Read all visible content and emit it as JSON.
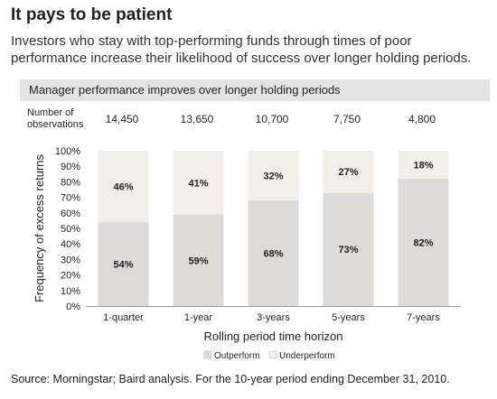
{
  "header": {
    "title": "It pays to be patient",
    "subtitle": "Investors who stay with top-performing funds through times of poor performance increase their likelihood of success over longer holding periods."
  },
  "panel": {
    "title": "Manager performance improves over longer holding periods",
    "observations_label": "Number of observations",
    "observations": [
      "14,450",
      "13,650",
      "10,700",
      "7,750",
      "4,800"
    ]
  },
  "chart_data": {
    "type": "bar",
    "stacked": true,
    "categories": [
      "1-quarter",
      "1-year",
      "3-years",
      "5-years",
      "7-years"
    ],
    "series": [
      {
        "name": "Outperform",
        "values": [
          54,
          59,
          68,
          73,
          82
        ],
        "labels": [
          "54%",
          "59%",
          "68%",
          "73%",
          "82%"
        ],
        "color": "#dcdbd9"
      },
      {
        "name": "Underperform",
        "values": [
          46,
          41,
          32,
          27,
          18
        ],
        "labels": [
          "46%",
          "41%",
          "32%",
          "27%",
          "18%"
        ],
        "color": "#f1efe8"
      }
    ],
    "xlabel": "Rolling period time horizon",
    "ylabel": "Frequency of excess returns",
    "ylim": [
      0,
      100
    ],
    "yticks": [
      "0%",
      "10%",
      "20%",
      "30%",
      "40%",
      "50%",
      "60%",
      "70%",
      "80%",
      "90%",
      "100%"
    ],
    "legend_position": "bottom",
    "grid": false
  },
  "footer": {
    "source": "Source: Morningstar; Baird analysis. For the 10-year period ending December 31, 2010."
  }
}
